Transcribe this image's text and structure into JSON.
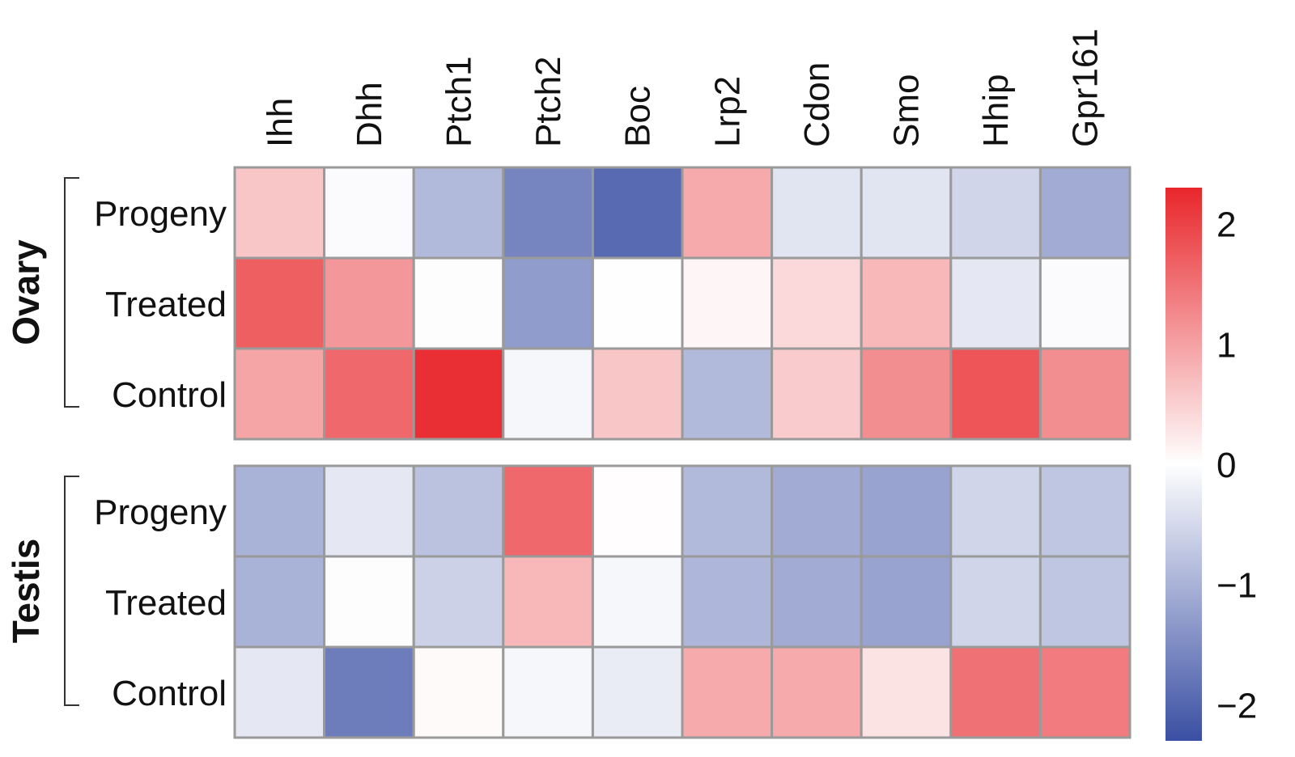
{
  "chart_data": {
    "type": "heatmap",
    "columns": [
      "Ihh",
      "Dhh",
      "Ptch1",
      "Ptch2",
      "Boc",
      "Lrp2",
      "Cdon",
      "Smo",
      "Hhip",
      "Gpr161"
    ],
    "groups": [
      {
        "name": "Ovary",
        "rows": [
          {
            "label": "Progeny",
            "values": [
              0.6,
              -0.05,
              -0.9,
              -1.6,
              -1.95,
              0.9,
              -0.35,
              -0.35,
              -0.55,
              -1.1
            ]
          },
          {
            "label": "Treated",
            "values": [
              1.7,
              1.1,
              -0.02,
              -1.3,
              0.01,
              0.1,
              0.4,
              0.75,
              -0.3,
              -0.05
            ]
          },
          {
            "label": "Control",
            "values": [
              0.95,
              1.6,
              2.2,
              -0.1,
              0.6,
              -0.9,
              0.55,
              1.2,
              1.8,
              1.2
            ]
          }
        ]
      },
      {
        "name": "Testis",
        "rows": [
          {
            "label": "Progeny",
            "values": [
              -1.0,
              -0.3,
              -0.8,
              1.6,
              0.02,
              -0.9,
              -1.1,
              -1.2,
              -0.55,
              -0.75
            ]
          },
          {
            "label": "Treated",
            "values": [
              -1.0,
              -0.02,
              -0.6,
              0.75,
              -0.1,
              -0.95,
              -1.1,
              -1.2,
              -0.55,
              -0.75
            ]
          },
          {
            "label": "Control",
            "values": [
              -0.3,
              -1.7,
              0.05,
              -0.1,
              -0.25,
              0.9,
              0.9,
              0.3,
              1.5,
              1.4
            ]
          }
        ]
      }
    ],
    "colorbar": {
      "range": [
        -2.3,
        2.3
      ],
      "ticks": [
        {
          "value": 2,
          "label": "2"
        },
        {
          "value": 1,
          "label": "1"
        },
        {
          "value": 0,
          "label": "0"
        },
        {
          "value": -1,
          "label": "−1"
        },
        {
          "value": -2,
          "label": "−2"
        }
      ],
      "colors": {
        "low": "#3a4fa3",
        "mid": "#ffffff",
        "high": "#e8262b"
      }
    },
    "grid": true,
    "legend": "right"
  }
}
